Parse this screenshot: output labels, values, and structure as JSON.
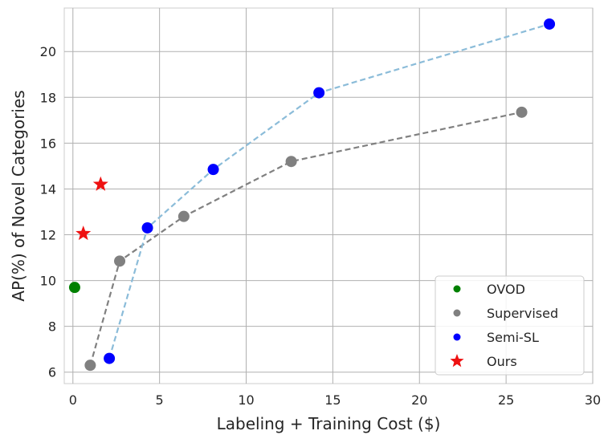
{
  "chart_data": {
    "type": "scatter",
    "xlabel": "Labeling + Training Cost ($)",
    "ylabel": "AP(%) of Novel Categories",
    "xlim": [
      -0.5,
      30
    ],
    "ylim": [
      5.5,
      21.9
    ],
    "xticks": [
      0,
      5,
      10,
      15,
      20,
      25,
      30
    ],
    "yticks": [
      6,
      8,
      10,
      12,
      14,
      16,
      18,
      20
    ],
    "grid": true,
    "legend_position": "lower-right",
    "series": [
      {
        "name": "OVOD",
        "marker": "circle",
        "color": "#008000",
        "connected": false,
        "points": [
          {
            "x": 0.1,
            "y": 9.7
          }
        ]
      },
      {
        "name": "Supervised",
        "marker": "circle",
        "color": "#808080",
        "connected": true,
        "line_color": "#808080",
        "points": [
          {
            "x": 1.0,
            "y": 6.3
          },
          {
            "x": 2.7,
            "y": 10.85
          },
          {
            "x": 6.4,
            "y": 12.8
          },
          {
            "x": 12.6,
            "y": 15.2
          },
          {
            "x": 25.9,
            "y": 17.35
          }
        ]
      },
      {
        "name": "Semi-SL",
        "marker": "circle",
        "color": "#0000ff",
        "connected": true,
        "line_color": "#8bbcd9",
        "points": [
          {
            "x": 2.1,
            "y": 6.6
          },
          {
            "x": 4.3,
            "y": 12.3
          },
          {
            "x": 8.1,
            "y": 14.85
          },
          {
            "x": 14.2,
            "y": 18.2
          },
          {
            "x": 27.5,
            "y": 21.2
          }
        ]
      },
      {
        "name": "Ours",
        "marker": "star",
        "color": "#ee1111",
        "connected": false,
        "points": [
          {
            "x": 0.6,
            "y": 12.05
          },
          {
            "x": 1.6,
            "y": 14.2
          }
        ]
      }
    ]
  }
}
